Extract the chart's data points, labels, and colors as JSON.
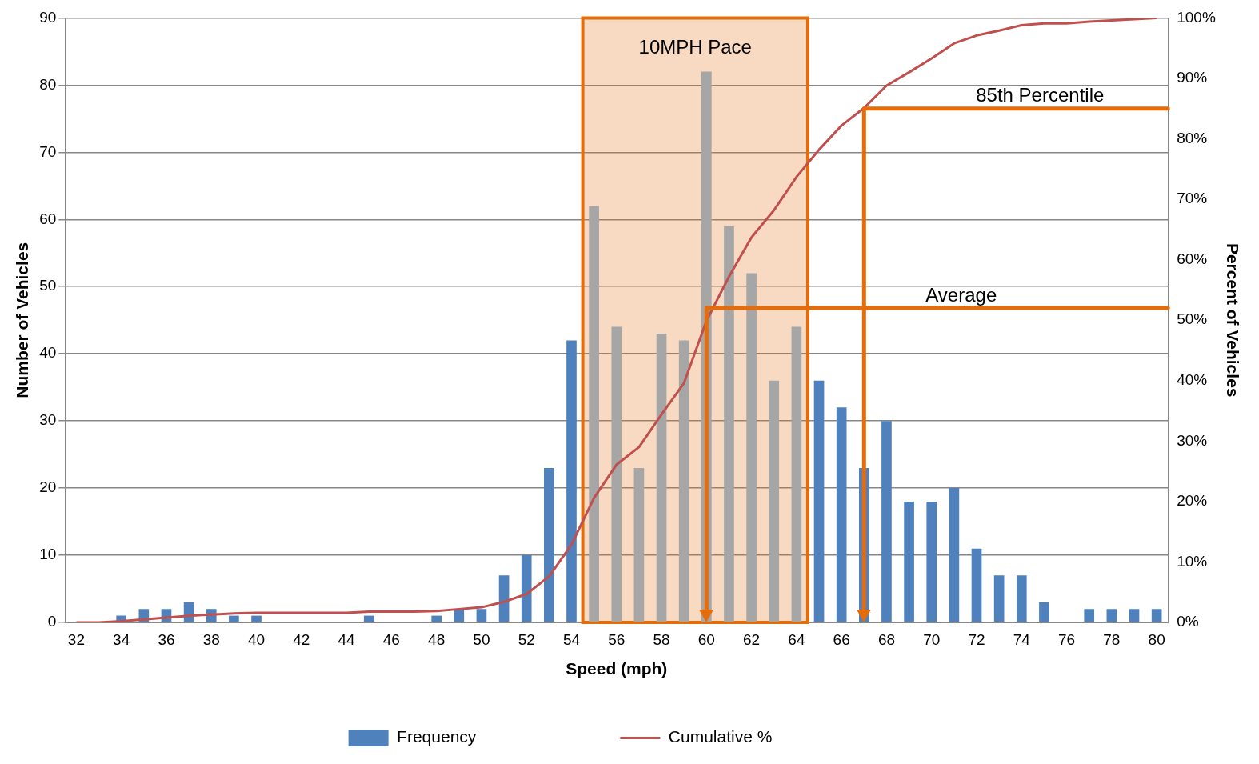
{
  "chart_data": {
    "type": "bar",
    "xlabel": "Speed (mph)",
    "ylabel": "Number of Vehicles",
    "y2label": "Percent of Vehicles",
    "x": [
      32,
      33,
      34,
      35,
      36,
      37,
      38,
      39,
      40,
      41,
      42,
      43,
      44,
      45,
      46,
      47,
      48,
      49,
      50,
      51,
      52,
      53,
      54,
      55,
      56,
      57,
      58,
      59,
      60,
      61,
      62,
      63,
      64,
      65,
      66,
      67,
      68,
      69,
      70,
      71,
      72,
      73,
      74,
      75,
      76,
      77,
      78,
      79,
      80
    ],
    "xlim": [
      31.5,
      80.5
    ],
    "xticks": [
      32,
      34,
      36,
      38,
      40,
      42,
      44,
      46,
      48,
      50,
      52,
      54,
      56,
      58,
      60,
      62,
      64,
      66,
      68,
      70,
      72,
      74,
      76,
      78,
      80
    ],
    "ylim": [
      0,
      90
    ],
    "yticks": [
      0,
      10,
      20,
      30,
      40,
      50,
      60,
      70,
      80,
      90
    ],
    "y2lim": [
      0,
      100
    ],
    "y2ticks": [
      {
        "value": 0,
        "label": "0%"
      },
      {
        "value": 10,
        "label": "10%"
      },
      {
        "value": 20,
        "label": "20%"
      },
      {
        "value": 30,
        "label": "30%"
      },
      {
        "value": 40,
        "label": "40%"
      },
      {
        "value": 50,
        "label": "50%"
      },
      {
        "value": 60,
        "label": "60%"
      },
      {
        "value": 70,
        "label": "70%"
      },
      {
        "value": 80,
        "label": "80%"
      },
      {
        "value": 90,
        "label": "90%"
      },
      {
        "value": 100,
        "label": "100%"
      }
    ],
    "series": [
      {
        "name": "Frequency",
        "color": "#4f81bd",
        "colors": [
          "#4f81bd",
          "#4f81bd",
          "#4f81bd",
          "#4f81bd",
          "#4f81bd",
          "#4f81bd",
          "#4f81bd",
          "#4f81bd",
          "#4f81bd",
          "#4f81bd",
          "#4f81bd",
          "#4f81bd",
          "#4f81bd",
          "#4f81bd",
          "#4f81bd",
          "#4f81bd",
          "#4f81bd",
          "#4f81bd",
          "#4f81bd",
          "#4f81bd",
          "#4f81bd",
          "#4f81bd",
          "#4f81bd",
          "#a6a6a6",
          "#a6a6a6",
          "#a6a6a6",
          "#a6a6a6",
          "#a6a6a6",
          "#a6a6a6",
          "#a6a6a6",
          "#a6a6a6",
          "#a6a6a6",
          "#a6a6a6",
          "#4f81bd",
          "#4f81bd",
          "#4f81bd",
          "#4f81bd",
          "#4f81bd",
          "#4f81bd",
          "#4f81bd",
          "#4f81bd",
          "#4f81bd",
          "#4f81bd",
          "#4f81bd",
          "#4f81bd",
          "#4f81bd",
          "#4f81bd",
          "#4f81bd",
          "#4f81bd"
        ],
        "values": [
          0,
          0,
          1,
          2,
          2,
          3,
          2,
          1,
          1,
          0,
          0,
          0,
          0,
          1,
          0,
          0,
          1,
          2,
          2,
          7,
          10,
          23,
          42,
          62,
          44,
          23,
          43,
          42,
          82,
          59,
          52,
          36,
          44,
          36,
          32,
          23,
          30,
          18,
          18,
          20,
          11,
          7,
          7,
          3,
          0,
          2,
          2,
          2,
          2
        ]
      },
      {
        "name": "Cumulative %",
        "type": "line",
        "axis": "y2",
        "color": "#c0504d",
        "values": [
          0,
          0,
          0.2,
          0.5,
          0.8,
          1.1,
          1.3,
          1.5,
          1.6,
          1.6,
          1.6,
          1.6,
          1.6,
          1.8,
          1.8,
          1.8,
          1.9,
          2.2,
          2.5,
          3.4,
          4.7,
          7.6,
          12.9,
          20.6,
          26.1,
          29,
          34.4,
          39.6,
          49.9,
          57.2,
          63.7,
          68.2,
          73.7,
          78.2,
          82.2,
          85.1,
          88.8,
          91,
          93.3,
          95.8,
          97.1,
          97.9,
          98.8,
          99.1,
          99.1,
          99.4,
          99.6,
          99.8,
          100
        ]
      }
    ],
    "marker": "none",
    "line_style": "solid",
    "grid": "y",
    "legend": "bottom",
    "bands": [
      {
        "axis": "x",
        "from": 54.5,
        "to": 64.5,
        "label": "10MPH Pace",
        "color": "#e46c0a"
      }
    ],
    "ref_lines": [
      {
        "axis": "x",
        "value": 60,
        "color": "#e46c0a"
      },
      {
        "axis": "y2",
        "value": 52,
        "label": "Average",
        "color": "#e46c0a"
      },
      {
        "axis": "x",
        "value": 67,
        "color": "#e46c0a"
      },
      {
        "axis": "y2",
        "value": 85,
        "label": "85th Percentile",
        "color": "#e46c0a"
      }
    ]
  }
}
